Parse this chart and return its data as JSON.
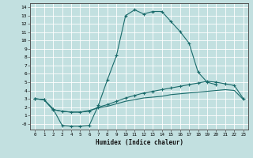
{
  "xlabel": "Humidex (Indice chaleur)",
  "ylabel": "",
  "xlim": [
    -0.5,
    23.5
  ],
  "ylim": [
    -0.7,
    14.5
  ],
  "xticks": [
    0,
    1,
    2,
    3,
    4,
    5,
    6,
    7,
    8,
    9,
    10,
    11,
    12,
    13,
    14,
    15,
    16,
    17,
    18,
    19,
    20,
    21,
    22,
    23
  ],
  "yticks": [
    0,
    1,
    2,
    3,
    4,
    5,
    6,
    7,
    8,
    9,
    10,
    11,
    12,
    13,
    14
  ],
  "ytick_labels": [
    "-0",
    "1",
    "2",
    "3",
    "4",
    "5",
    "6",
    "7",
    "8",
    "9",
    "10",
    "11",
    "12",
    "13",
    "14"
  ],
  "bg_color": "#c2e0e0",
  "grid_color": "#ffffff",
  "line_color": "#1a6b6b",
  "curve1_x": [
    0,
    1,
    2,
    3,
    4,
    5,
    6,
    7,
    8,
    9,
    10,
    11,
    12,
    13,
    14,
    15,
    16,
    17,
    18,
    19,
    20
  ],
  "curve1_y": [
    3.0,
    2.9,
    1.8,
    -0.2,
    -0.3,
    -0.3,
    -0.2,
    2.2,
    5.3,
    8.2,
    13.0,
    13.7,
    13.2,
    13.5,
    13.5,
    12.3,
    11.1,
    9.7,
    6.2,
    5.0,
    4.7
  ],
  "curve2_x": [
    0,
    1,
    2,
    3,
    4,
    5,
    6,
    7,
    8,
    9,
    10,
    11,
    12,
    13,
    14,
    15,
    16,
    17,
    18,
    19,
    20,
    21,
    22,
    23
  ],
  "curve2_y": [
    3.0,
    2.9,
    1.7,
    1.5,
    1.4,
    1.4,
    1.5,
    2.0,
    2.3,
    2.7,
    3.1,
    3.4,
    3.7,
    3.9,
    4.1,
    4.3,
    4.5,
    4.7,
    4.9,
    5.1,
    5.0,
    4.8,
    4.6,
    3.0
  ],
  "curve3_x": [
    0,
    1,
    2,
    3,
    4,
    5,
    6,
    7,
    8,
    9,
    10,
    11,
    12,
    13,
    14,
    15,
    16,
    17,
    18,
    19,
    20,
    21,
    22,
    23
  ],
  "curve3_y": [
    3.0,
    2.9,
    1.7,
    1.5,
    1.4,
    1.4,
    1.6,
    1.9,
    2.1,
    2.4,
    2.7,
    2.9,
    3.1,
    3.2,
    3.3,
    3.5,
    3.6,
    3.7,
    3.8,
    3.9,
    4.0,
    4.1,
    4.0,
    2.9
  ]
}
